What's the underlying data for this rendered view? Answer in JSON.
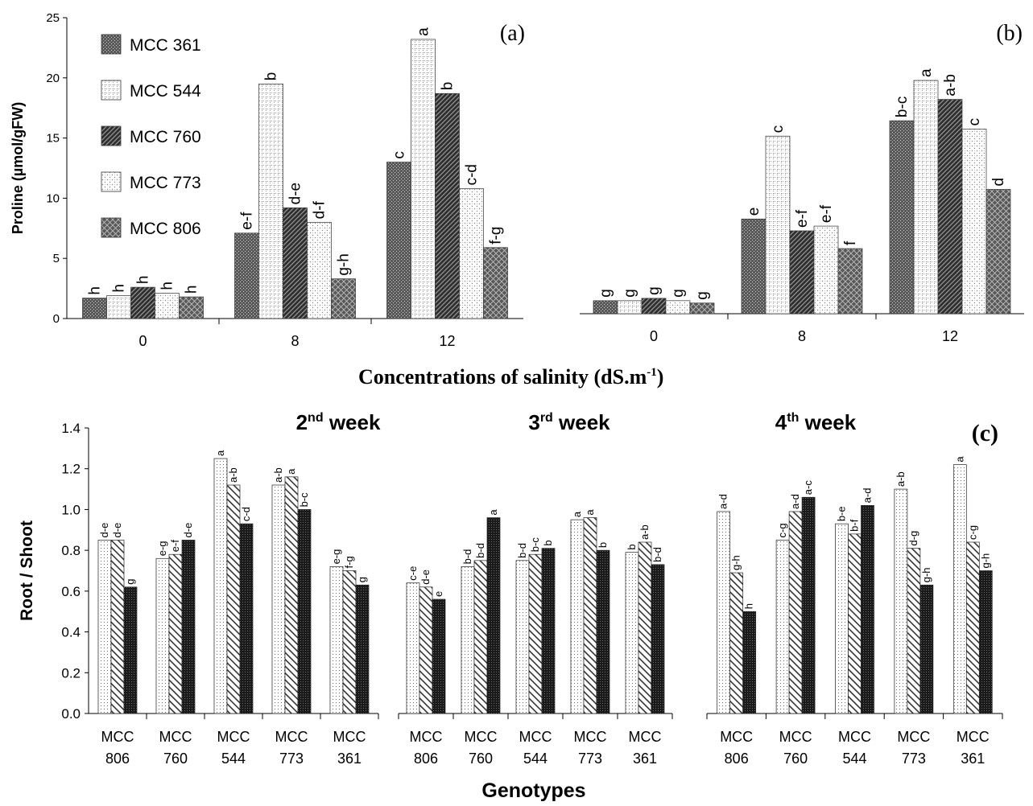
{
  "chart_data": [
    {
      "id": "a",
      "type": "bar",
      "panel_label": "(a)",
      "ylabel": "Proline (µmol/gFW)",
      "ylim": [
        0,
        25
      ],
      "yticks": [
        "0",
        "5",
        "10",
        "15",
        "20",
        "25"
      ],
      "categories": [
        "0",
        "8",
        "12"
      ],
      "legend_position": "top-left",
      "series": [
        {
          "name": "MCC 361",
          "values": [
            1.7,
            7.1,
            13.0
          ],
          "letters": [
            "h",
            "e-f",
            "c"
          ],
          "pattern": "dots-dark"
        },
        {
          "name": "MCC 544",
          "values": [
            1.9,
            19.5,
            23.2
          ],
          "letters": [
            "h",
            "b",
            "a"
          ],
          "pattern": "grid-light"
        },
        {
          "name": "MCC 760",
          "values": [
            2.6,
            9.2,
            18.7
          ],
          "letters": [
            "h",
            "d-e",
            "b"
          ],
          "pattern": "diag-dense"
        },
        {
          "name": "MCC 773",
          "values": [
            2.1,
            8.0,
            10.8
          ],
          "letters": [
            "h",
            "d-f",
            "c-d"
          ],
          "pattern": "dots-light"
        },
        {
          "name": "MCC 806",
          "values": [
            1.8,
            3.3,
            5.9
          ],
          "letters": [
            "h",
            "g-h",
            "f-g"
          ],
          "pattern": "crosshatch"
        }
      ]
    },
    {
      "id": "b",
      "type": "bar",
      "panel_label": "(b)",
      "ylim": [
        0,
        25
      ],
      "categories": [
        "0",
        "8",
        "12"
      ],
      "series": [
        {
          "name": "MCC 361",
          "values": [
            1.1,
            8.0,
            16.3
          ],
          "letters": [
            "g",
            "e",
            "b-c"
          ],
          "pattern": "dots-dark"
        },
        {
          "name": "MCC 544",
          "values": [
            1.1,
            15.0,
            19.7
          ],
          "letters": [
            "g",
            "c",
            "a"
          ],
          "pattern": "grid-light"
        },
        {
          "name": "MCC 760",
          "values": [
            1.3,
            7.0,
            18.1
          ],
          "letters": [
            "g",
            "e-f",
            "a-b"
          ],
          "pattern": "diag-dense"
        },
        {
          "name": "MCC 773",
          "values": [
            1.1,
            7.4,
            15.6
          ],
          "letters": [
            "g",
            "e-f",
            "c"
          ],
          "pattern": "dots-light"
        },
        {
          "name": "MCC 806",
          "values": [
            0.9,
            5.5,
            10.5
          ],
          "letters": [
            "g",
            "f",
            "d"
          ],
          "pattern": "crosshatch"
        }
      ]
    },
    {
      "id": "c",
      "type": "bar",
      "panel_label": "(c)",
      "ylabel": "Root / Shoot",
      "xlabel": "Genotypes",
      "ylim": [
        0,
        1.4
      ],
      "yticks": [
        "0.0",
        "0.2",
        "0.4",
        "0.6",
        "0.8",
        "1.0",
        "1.2",
        "1.4"
      ],
      "groups": [
        {
          "week_num": "2",
          "week_sup": "nd",
          "week_text": " week",
          "categories": [
            [
              "MCC",
              "806"
            ],
            [
              "MCC",
              "760"
            ],
            [
              "MCC",
              "544"
            ],
            [
              "MCC",
              "773"
            ],
            [
              "MCC",
              "361"
            ]
          ],
          "values": [
            [
              0.85,
              0.85,
              0.62
            ],
            [
              0.76,
              0.78,
              0.85
            ],
            [
              1.25,
              1.12,
              0.93
            ],
            [
              1.12,
              1.16,
              1.0
            ],
            [
              0.72,
              0.7,
              0.63
            ]
          ],
          "letters": [
            [
              "d-e",
              "d-e",
              "g"
            ],
            [
              "e-g",
              "e-f",
              "d-e"
            ],
            [
              "a",
              "a-b",
              "c-d"
            ],
            [
              "a-b",
              "a",
              "b-c"
            ],
            [
              "e-g",
              "f-g",
              "g"
            ]
          ]
        },
        {
          "week_num": "3",
          "week_sup": "rd",
          "week_text": " week",
          "categories": [
            [
              "MCC",
              "806"
            ],
            [
              "MCC",
              "760"
            ],
            [
              "MCC",
              "544"
            ],
            [
              "MCC",
              "773"
            ],
            [
              "MCC",
              "361"
            ]
          ],
          "values": [
            [
              0.64,
              0.62,
              0.56
            ],
            [
              0.72,
              0.75,
              0.96
            ],
            [
              0.75,
              0.78,
              0.81
            ],
            [
              0.95,
              0.96,
              0.8
            ],
            [
              0.79,
              0.84,
              0.73
            ]
          ],
          "letters": [
            [
              "c-e",
              "d-e",
              "e"
            ],
            [
              "b-d",
              "b-d",
              "a"
            ],
            [
              "b-d",
              "b-c",
              "b"
            ],
            [
              "a",
              "a",
              "b"
            ],
            [
              "b",
              "a-b",
              "b-d"
            ]
          ]
        },
        {
          "week_num": "4",
          "week_sup": "th",
          "week_text": " week",
          "categories": [
            [
              "MCC",
              "806"
            ],
            [
              "MCC",
              "760"
            ],
            [
              "MCC",
              "544"
            ],
            [
              "MCC",
              "773"
            ],
            [
              "MCC",
              "361"
            ]
          ],
          "values": [
            [
              0.99,
              0.69,
              0.5
            ],
            [
              0.85,
              0.99,
              1.06
            ],
            [
              0.93,
              0.88,
              1.02
            ],
            [
              1.1,
              0.81,
              0.63
            ],
            [
              1.22,
              0.84,
              0.7
            ]
          ],
          "letters": [
            [
              "a-d",
              "g-h",
              "h"
            ],
            [
              "c-g",
              "a-d",
              "a-c"
            ],
            [
              "b-e",
              "b-f",
              "a-d"
            ],
            [
              "a-b",
              "d-g",
              "g-h"
            ],
            [
              "a",
              "c-g",
              "g-h"
            ]
          ]
        }
      ]
    }
  ],
  "shared": {
    "xlabel_ab": "Concentrations of salinity (dS.m",
    "xlabel_ab_sup": "-1",
    "xlabel_ab_end": ")"
  }
}
